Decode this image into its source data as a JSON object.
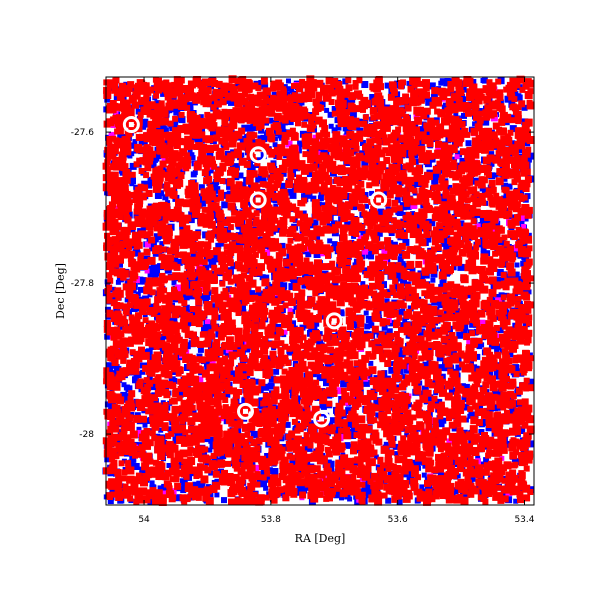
{
  "chart_data": {
    "type": "scatter",
    "title": "",
    "xlabel": "RA [Deg]",
    "ylabel": "Dec [Deg]",
    "xlim": [
      54.06,
      53.385
    ],
    "ylim": [
      -28.094,
      -27.527
    ],
    "x_ticks": [
      54,
      53.8,
      53.6,
      53.4
    ],
    "x_tick_labels": [
      "54",
      "53.8",
      "53.6",
      "53.4"
    ],
    "y_ticks": [
      -27.6,
      -27.8,
      -28
    ],
    "y_tick_labels": [
      "-27.6",
      "-27.8",
      "-28"
    ],
    "grid": false,
    "legend": "none",
    "background_color": "#ffffff",
    "field_ra_range": [
      54.06,
      53.39
    ],
    "field_dec_range": [
      -28.09,
      -27.53
    ],
    "series": [
      {
        "color": "#0000ff",
        "approx_count": 3000
      },
      {
        "color": "#ff00ff",
        "approx_count": 150
      },
      {
        "color": "#ff0000",
        "approx_count": 6000
      }
    ],
    "masked_bright_sources": [
      {
        "ra": 54.02,
        "dec": -27.59
      },
      {
        "ra": 53.82,
        "dec": -27.63
      },
      {
        "ra": 53.82,
        "dec": -27.69
      },
      {
        "ra": 53.63,
        "dec": -27.69
      },
      {
        "ra": 53.7,
        "dec": -27.85
      },
      {
        "ra": 53.84,
        "dec": -27.97
      },
      {
        "ra": 53.72,
        "dec": -27.98
      }
    ]
  }
}
